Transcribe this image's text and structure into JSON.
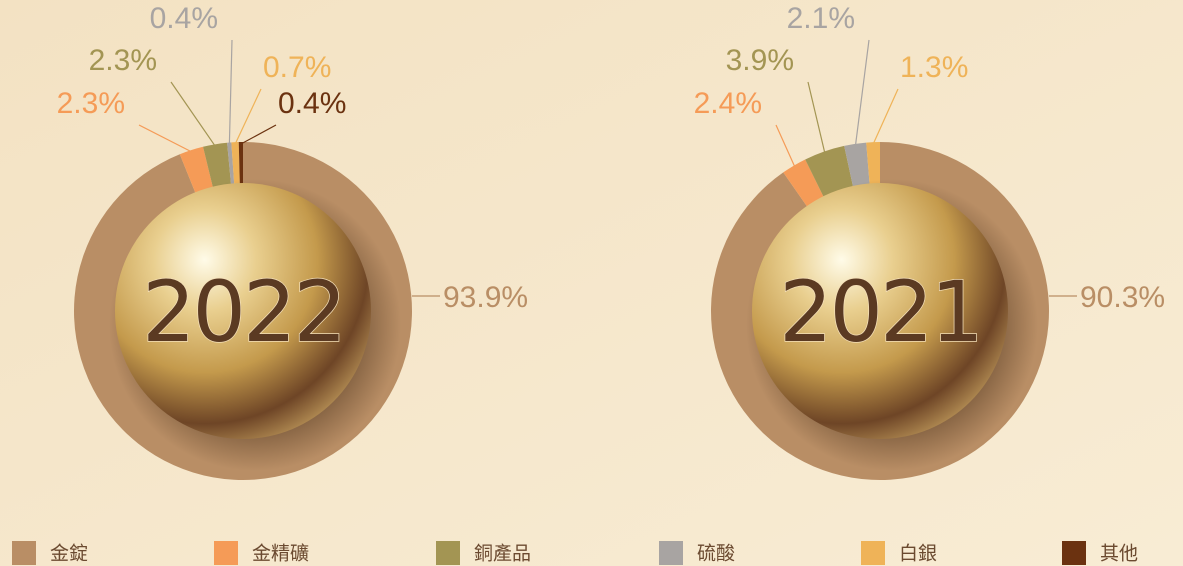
{
  "chart_data": [
    {
      "type": "pie",
      "title": "2022",
      "categories": [
        "金錠",
        "金精礦",
        "銅產品",
        "硫酸",
        "白銀",
        "其他"
      ],
      "values": [
        93.9,
        2.3,
        2.3,
        0.4,
        0.7,
        0.4
      ],
      "value_labels": [
        "93.9%",
        "2.3%",
        "2.3%",
        "0.4%",
        "0.7%",
        "0.4%"
      ],
      "colors": [
        "#b98e65",
        "#f59b57",
        "#a39553",
        "#a8a4a2",
        "#efb358",
        "#6b3210"
      ]
    },
    {
      "type": "pie",
      "title": "2021",
      "categories": [
        "金錠",
        "金精礦",
        "銅產品",
        "硫酸",
        "白銀",
        "其他"
      ],
      "values": [
        90.3,
        2.4,
        3.9,
        2.1,
        1.3,
        null
      ],
      "value_labels": [
        "90.3%",
        "2.4%",
        "3.9%",
        "2.1%",
        "1.3%",
        null
      ],
      "colors": [
        "#b98e65",
        "#f59b57",
        "#a39553",
        "#a8a4a2",
        "#efb358",
        "#6b3210"
      ]
    }
  ]
}
